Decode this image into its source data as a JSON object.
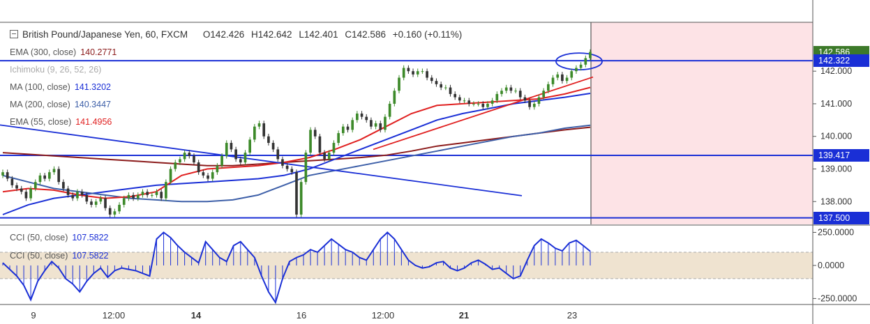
{
  "header": {
    "symbol": "British Pound/Japanese Yen, 60, FXCM",
    "open": "O142.426",
    "high": "H142.642",
    "low": "L142.401",
    "close": "C142.586",
    "change": "+0.160 (+0.11%)"
  },
  "indicators": [
    {
      "name": "EMA (300, close)",
      "value": "140.2771",
      "color": "#8b1a1a"
    },
    {
      "name": "Ichimoku (9, 26, 52, 26)",
      "value": "",
      "color": "#aaaaaa"
    },
    {
      "name": "MA (100, close)",
      "value": "141.3202",
      "color": "#1a2fd6"
    },
    {
      "name": "MA (200, close)",
      "value": "140.3447",
      "color": "#3d5fa8"
    },
    {
      "name": "EMA (55, close)",
      "value": "141.4956",
      "color": "#e02020"
    }
  ],
  "cci_legend": [
    {
      "name": "CCI (50, close)",
      "value": "107.5822"
    },
    {
      "name": "CCI (50, close)",
      "value": "107.5822"
    }
  ],
  "price_tags": [
    {
      "label": "142.586",
      "value": 142.586,
      "color": "#3d7a2a"
    },
    {
      "label": "142.322",
      "value": 142.322,
      "color": "#1a2fd6"
    },
    {
      "label": "139.417",
      "value": 139.417,
      "color": "#1a2fd6"
    },
    {
      "label": "137.500",
      "value": 137.5,
      "color": "#1a2fd6"
    }
  ],
  "colors": {
    "up": "#3d8a2a",
    "down": "#333333",
    "accent": "#1a2fd6",
    "shade": "#fde3e6",
    "cci_band": "#efe3d0"
  },
  "chart_data": {
    "type": "candlestick",
    "price_axis": {
      "ylim": [
        137.3,
        143.5
      ],
      "ticks": [
        "142.000",
        "141.000",
        "140.000",
        "139.000",
        "138.000"
      ]
    },
    "x_ticks": [
      "9",
      "12:00",
      "14",
      "16",
      "12:00",
      "21",
      "23"
    ],
    "x_ticks_bold": [
      "14",
      "21"
    ],
    "candles": [
      138.9,
      138.7,
      138.5,
      138.4,
      138.3,
      138.1,
      138.4,
      138.6,
      138.8,
      138.7,
      138.9,
      139.0,
      138.6,
      138.4,
      138.2,
      138.1,
      138.3,
      138.2,
      138.0,
      137.9,
      138.0,
      138.1,
      137.8,
      137.6,
      137.7,
      137.9,
      138.1,
      138.2,
      138.1,
      138.2,
      138.3,
      138.2,
      138.2,
      138.3,
      138.1,
      138.6,
      139.0,
      139.2,
      139.3,
      139.5,
      139.4,
      139.2,
      138.9,
      138.8,
      138.7,
      138.9,
      139.1,
      139.4,
      139.8,
      139.6,
      139.3,
      139.2,
      139.5,
      139.9,
      140.3,
      140.4,
      140.0,
      139.8,
      139.6,
      139.3,
      139.1,
      139.0,
      138.9,
      137.6,
      138.6,
      139.5,
      140.2,
      140.0,
      139.5,
      139.3,
      139.5,
      139.8,
      140.1,
      140.3,
      140.2,
      140.5,
      140.7,
      140.6,
      140.5,
      140.3,
      140.4,
      140.2,
      140.6,
      141.0,
      141.4,
      141.8,
      142.1,
      142.0,
      141.9,
      142.0,
      142.0,
      141.8,
      141.7,
      141.6,
      141.5,
      141.5,
      141.3,
      141.2,
      141.1,
      141.1,
      141.0,
      141.0,
      141.0,
      140.9,
      141.0,
      141.1,
      141.3,
      141.4,
      141.5,
      141.4,
      141.4,
      141.2,
      141.1,
      140.9,
      141.0,
      141.2,
      141.4,
      141.6,
      141.8,
      141.9,
      141.7,
      141.8,
      142.0,
      142.1,
      142.2,
      142.4,
      142.59
    ],
    "series": [
      {
        "name": "EMA (300, close)",
        "color": "#8b1a1a",
        "values": [
          139.5,
          139.45,
          139.4,
          139.35,
          139.3,
          139.25,
          139.2,
          139.15,
          139.1,
          139.1,
          139.15,
          139.2,
          139.25,
          139.3,
          139.35,
          139.42,
          139.55,
          139.7,
          139.8,
          139.9,
          140.0,
          140.1,
          140.2,
          140.28
        ]
      },
      {
        "name": "MA (100, close)",
        "color": "#1a2fd6",
        "values": [
          137.6,
          137.9,
          138.1,
          138.2,
          138.3,
          138.4,
          138.5,
          138.55,
          138.6,
          138.65,
          138.7,
          138.8,
          139.0,
          139.3,
          139.6,
          139.9,
          140.2,
          140.5,
          140.7,
          140.85,
          141.0,
          141.1,
          141.2,
          141.32
        ]
      },
      {
        "name": "MA (200, close)",
        "color": "#3d5fa8",
        "values": [
          138.8,
          138.6,
          138.4,
          138.3,
          138.2,
          138.1,
          138.05,
          138.0,
          138.0,
          138.05,
          138.2,
          138.5,
          138.8,
          138.95,
          139.1,
          139.25,
          139.4,
          139.55,
          139.7,
          139.85,
          140.0,
          140.1,
          140.25,
          140.34
        ]
      },
      {
        "name": "EMA (55, close)",
        "color": "#e02020",
        "values": [
          138.3,
          138.4,
          138.35,
          138.2,
          138.1,
          138.15,
          138.3,
          138.8,
          139.0,
          139.05,
          139.1,
          139.2,
          139.35,
          139.6,
          139.9,
          140.3,
          140.7,
          140.95,
          141.0,
          141.05,
          141.1,
          141.15,
          141.3,
          141.5
        ]
      }
    ],
    "cci": {
      "ylim": [
        -290,
        300
      ],
      "ticks": [
        "250.0000",
        "0.0000",
        "-250.0000"
      ],
      "band": [
        100,
        -100
      ],
      "values": [
        20,
        -30,
        -80,
        -150,
        -260,
        -120,
        -40,
        30,
        -20,
        -100,
        -140,
        -200,
        -120,
        -60,
        -20,
        -90,
        -40,
        -20,
        -30,
        -40,
        -60,
        -80,
        200,
        250,
        210,
        150,
        100,
        60,
        20,
        180,
        120,
        60,
        30,
        150,
        180,
        120,
        60,
        -80,
        -200,
        -280,
        -100,
        30,
        60,
        80,
        120,
        100,
        150,
        200,
        160,
        120,
        100,
        60,
        40,
        120,
        200,
        250,
        200,
        120,
        40,
        0,
        -20,
        -10,
        20,
        30,
        -20,
        -40,
        -20,
        20,
        40,
        10,
        -30,
        -20,
        -60,
        -100,
        -80,
        40,
        150,
        200,
        170,
        130,
        110,
        170,
        190,
        150,
        107
      ]
    }
  }
}
